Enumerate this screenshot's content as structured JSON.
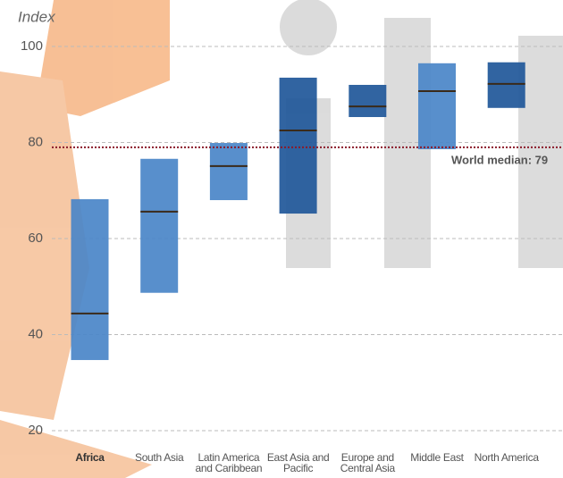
{
  "chart_data": {
    "type": "range_bar",
    "y_axis_label": "Index",
    "categories": [
      "Africa",
      "South Asia",
      "Latin America and Caribbean",
      "East Asia and Pacific",
      "Europe and Central Asia",
      "Middle East",
      "North America"
    ],
    "low": [
      34.7,
      48.7,
      68,
      65.2,
      85.3,
      78.6,
      87.2
    ],
    "high": [
      68.2,
      76.6,
      79.9,
      93.5,
      92,
      96.5,
      96.7
    ],
    "median": [
      44.4,
      65.6,
      75.1,
      82.5,
      87.5,
      90.7,
      92.2
    ],
    "colors": [
      "#4a86c8",
      "#4a86c8",
      "#4a86c8",
      "#1f5799",
      "#1f5799",
      "#4a86c8",
      "#1f5799"
    ],
    "median_color": "#3a2a1a",
    "reference_line": {
      "value": 79,
      "label": "World median: 79",
      "color": "#8b1a2a"
    },
    "ylim": [
      17,
      106
    ],
    "yticks": [
      20,
      40,
      60,
      80,
      100
    ],
    "grid": true
  }
}
